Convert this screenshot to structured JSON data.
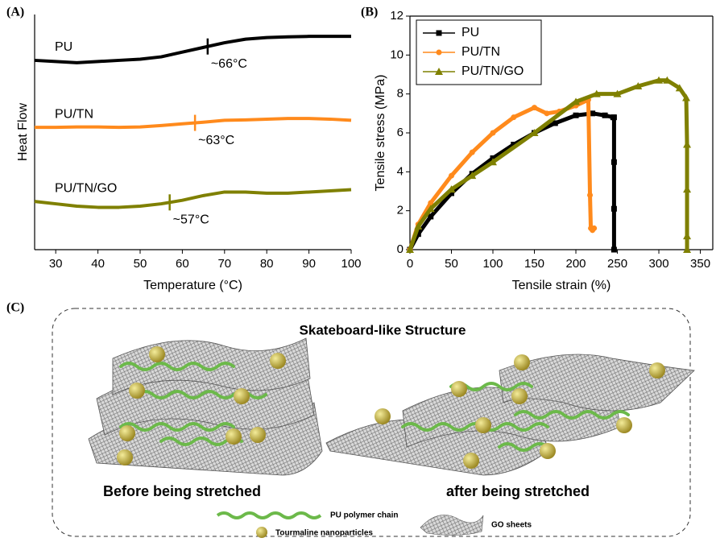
{
  "chart_data": [
    {
      "type": "line",
      "panel": "(A)",
      "xlabel": "Temperature (°C)",
      "ylabel": "Heat Flow",
      "x": [
        25,
        30,
        35,
        40,
        45,
        50,
        55,
        60,
        65,
        70,
        75,
        80,
        85,
        90,
        95,
        100
      ],
      "xlim": [
        25,
        100
      ],
      "xticks": [
        30,
        40,
        50,
        60,
        70,
        80,
        90,
        100
      ],
      "ylim": [
        0,
        10
      ],
      "legend": false,
      "series": [
        {
          "name": "PU",
          "color": "#000000",
          "values": [
            8.05,
            8.0,
            7.95,
            8.0,
            8.05,
            8.1,
            8.2,
            8.4,
            8.6,
            8.8,
            8.95,
            9.02,
            9.05,
            9.07,
            9.07,
            9.07
          ],
          "transition": {
            "x": 66,
            "label": "~66°C"
          }
        },
        {
          "name": "PU/TN",
          "color": "#ff8a1c",
          "values": [
            5.2,
            5.2,
            5.22,
            5.22,
            5.2,
            5.22,
            5.28,
            5.35,
            5.42,
            5.5,
            5.52,
            5.55,
            5.58,
            5.58,
            5.55,
            5.5
          ],
          "transition": {
            "x": 63,
            "label": "~63°C"
          }
        },
        {
          "name": "PU/TN/GO",
          "color": "#7f8000",
          "values": [
            2.05,
            1.95,
            1.85,
            1.8,
            1.8,
            1.85,
            1.95,
            2.1,
            2.3,
            2.45,
            2.45,
            2.4,
            2.4,
            2.45,
            2.5,
            2.55
          ],
          "transition": {
            "x": 57,
            "label": "~57°C"
          }
        }
      ]
    },
    {
      "type": "scatter-line",
      "panel": "(B)",
      "xlabel": "Tensile strain (%)",
      "ylabel": "Tensile stress (MPa)",
      "xlim": [
        0,
        365
      ],
      "xticks": [
        0,
        50,
        100,
        150,
        200,
        250,
        300,
        350
      ],
      "ylim": [
        0,
        12
      ],
      "yticks": [
        0,
        2,
        4,
        6,
        8,
        10,
        12
      ],
      "legend": "upper left",
      "series": [
        {
          "name": "PU",
          "color": "#000000",
          "marker": "square",
          "x": [
            0,
            10,
            25,
            50,
            75,
            100,
            125,
            150,
            175,
            200,
            220,
            235,
            245,
            246,
            246,
            246,
            246
          ],
          "values": [
            0,
            0.8,
            1.7,
            2.9,
            3.9,
            4.7,
            5.4,
            6.0,
            6.5,
            6.9,
            7.0,
            6.9,
            6.8,
            6.8,
            4.5,
            2.1,
            0
          ]
        },
        {
          "name": "PU/TN",
          "color": "#ff8a1c",
          "marker": "circle",
          "x": [
            0,
            10,
            25,
            50,
            75,
            100,
            125,
            150,
            165,
            180,
            200,
            215,
            217,
            218,
            220,
            222
          ],
          "values": [
            0,
            1.3,
            2.4,
            3.8,
            5.0,
            6.0,
            6.8,
            7.3,
            7.0,
            7.1,
            7.4,
            7.7,
            2.8,
            1.1,
            1.0,
            1.1
          ]
        },
        {
          "name": "PU/TN/GO",
          "color": "#7f8000",
          "marker": "triangle",
          "x": [
            0,
            10,
            25,
            50,
            75,
            100,
            150,
            200,
            225,
            250,
            275,
            300,
            310,
            325,
            333,
            334,
            334,
            334,
            334
          ],
          "values": [
            0,
            1.2,
            2.1,
            3.1,
            3.8,
            4.5,
            6.0,
            7.6,
            8.0,
            8.0,
            8.4,
            8.7,
            8.7,
            8.3,
            7.8,
            5.4,
            3.1,
            0.7,
            0
          ]
        }
      ]
    }
  ],
  "diagram": {
    "panel": "(C)",
    "title": "Skateboard-like Structure",
    "left_caption": "Before being stretched",
    "right_caption": "after being stretched",
    "legend": {
      "chain": "PU polymer chain",
      "particles": "Tourmaline nanoparticles",
      "sheets": "GO sheets"
    }
  }
}
